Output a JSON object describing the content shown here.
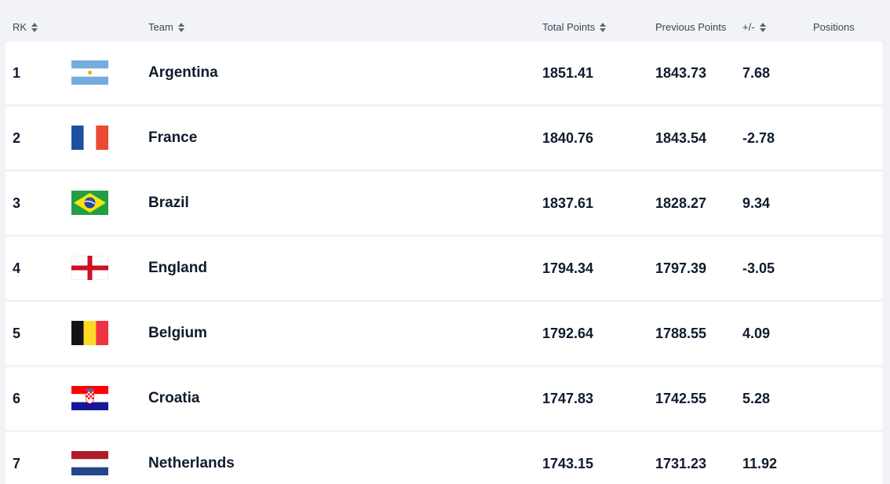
{
  "header": {
    "rank_label": "RK",
    "team_label": "Team",
    "total_points_label": "Total Points",
    "previous_points_label": "Previous Points",
    "change_label": "+/-",
    "positions_label": "Positions"
  },
  "icons": {
    "sort": "sort-icon"
  },
  "rows": [
    {
      "rank": "1",
      "team": "Argentina",
      "flag": "argentina-flag-icon",
      "total_points": "1851.41",
      "previous_points": "1843.73",
      "change": "7.68"
    },
    {
      "rank": "2",
      "team": "France",
      "flag": "france-flag-icon",
      "total_points": "1840.76",
      "previous_points": "1843.54",
      "change": "-2.78"
    },
    {
      "rank": "3",
      "team": "Brazil",
      "flag": "brazil-flag-icon",
      "total_points": "1837.61",
      "previous_points": "1828.27",
      "change": "9.34"
    },
    {
      "rank": "4",
      "team": "England",
      "flag": "england-flag-icon",
      "total_points": "1794.34",
      "previous_points": "1797.39",
      "change": "-3.05"
    },
    {
      "rank": "5",
      "team": "Belgium",
      "flag": "belgium-flag-icon",
      "total_points": "1792.64",
      "previous_points": "1788.55",
      "change": "4.09"
    },
    {
      "rank": "6",
      "team": "Croatia",
      "flag": "croatia-flag-icon",
      "total_points": "1747.83",
      "previous_points": "1742.55",
      "change": "5.28"
    },
    {
      "rank": "7",
      "team": "Netherlands",
      "flag": "netherlands-flag-icon",
      "total_points": "1743.15",
      "previous_points": "1731.23",
      "change": "11.92"
    }
  ],
  "colors": {
    "background": "#f1f3f7",
    "row_background": "#ffffff",
    "text": "#0f1b2d",
    "header_text": "#3b4658"
  }
}
